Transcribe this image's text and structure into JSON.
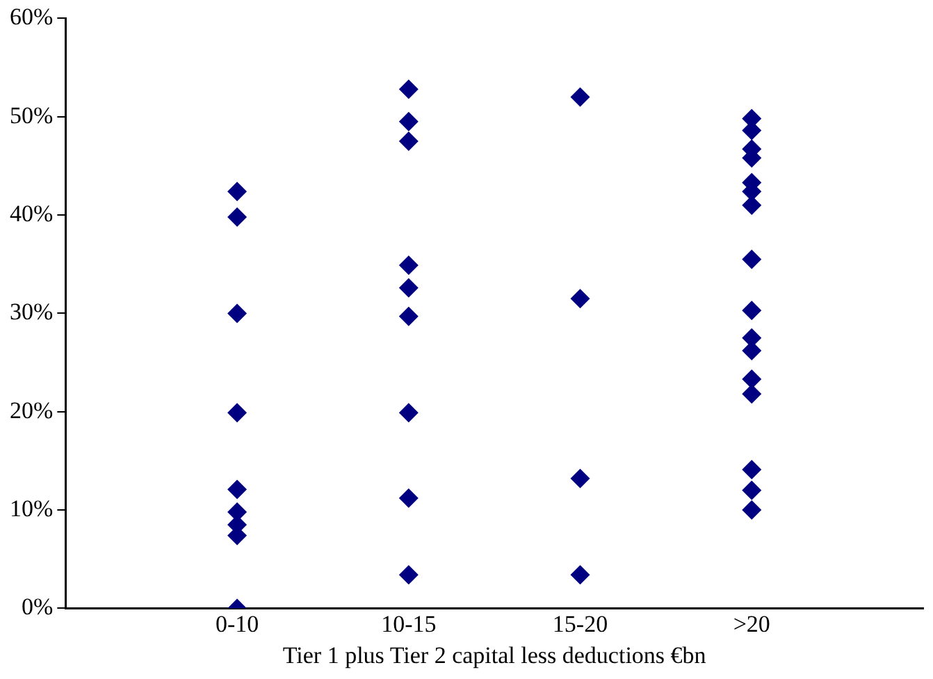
{
  "chart_data": {
    "type": "scatter",
    "xlabel": "Tier 1 plus Tier 2 capital less deductions €bn",
    "categories": [
      null,
      "0-10",
      "10-15",
      "15-20",
      ">20",
      null
    ],
    "ylim": [
      0,
      60
    ],
    "yticks": [
      {
        "value": 0,
        "label": "0%"
      },
      {
        "value": 10,
        "label": "10%"
      },
      {
        "value": 20,
        "label": "20%"
      },
      {
        "value": 30,
        "label": "30%"
      },
      {
        "value": 40,
        "label": "40%"
      },
      {
        "value": 50,
        "label": "50%"
      },
      {
        "value": 60,
        "label": "60%"
      }
    ],
    "grid": false,
    "legend": false,
    "marker": "diamond",
    "series": [
      {
        "color": "#000080",
        "x": [
          "0-10",
          "0-10",
          "0-10",
          "0-10",
          "0-10",
          "0-10",
          "0-10",
          "0-10",
          "0-10",
          "10-15",
          "10-15",
          "10-15",
          "10-15",
          "10-15",
          "10-15",
          "10-15",
          "10-15",
          "10-15",
          "15-20",
          "15-20",
          "15-20",
          "15-20",
          ">20",
          ">20",
          ">20",
          ">20",
          ">20",
          ">20",
          ">20",
          ">20",
          ">20",
          ">20",
          ">20",
          ">20",
          ">20",
          ">20",
          ">20",
          ">20"
        ],
        "values": [
          42.4,
          39.8,
          30.0,
          19.9,
          12.1,
          9.8,
          8.5,
          7.4,
          0,
          52.8,
          49.5,
          47.5,
          34.9,
          32.6,
          29.7,
          19.9,
          11.2,
          3.4,
          52.0,
          31.5,
          13.2,
          3.4,
          49.8,
          48.6,
          46.7,
          45.8,
          43.3,
          42.4,
          41.0,
          35.5,
          30.3,
          27.5,
          26.2,
          23.3,
          21.8,
          14.1,
          12.0,
          10.0
        ]
      }
    ]
  }
}
